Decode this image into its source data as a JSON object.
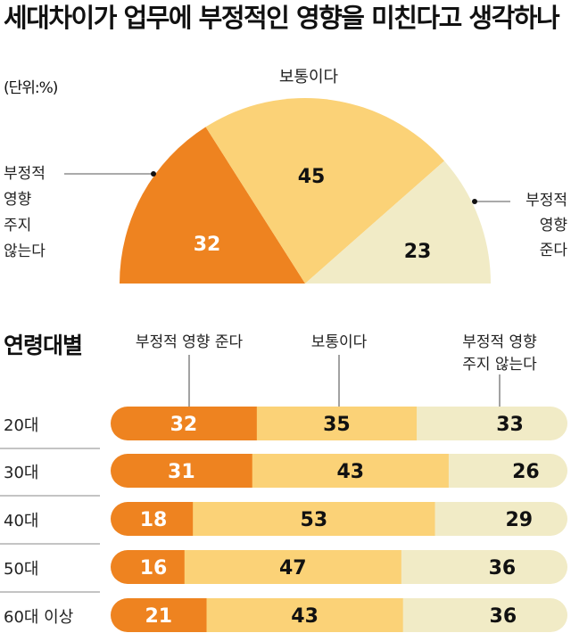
{
  "chart_data": [
    {
      "type": "pie",
      "subtype": "half-donut-semicircle",
      "title": "세대차이가 업무에 부정적인 영향을 미친다고 생각하나",
      "unit": "(단위:%)",
      "slices": [
        {
          "label": "부정적 영향 주지 않는다",
          "label_lines": [
            "부정적",
            "영향",
            "주지",
            "않는다"
          ],
          "value": 32,
          "color": "#ee8320"
        },
        {
          "label": "보통이다",
          "label_lines": [
            "보통이다"
          ],
          "value": 45,
          "color": "#fbd277"
        },
        {
          "label": "부정적 영향 준다",
          "label_lines": [
            "부정적",
            "영향",
            "준다"
          ],
          "value": 23,
          "color": "#f1ebc6"
        }
      ]
    },
    {
      "type": "bar",
      "subtype": "stacked-horizontal-100",
      "title": "연령대별",
      "series_labels": [
        {
          "name": "부정적 영향 준다",
          "lines": [
            "부정적 영향 준다"
          ]
        },
        {
          "name": "보통이다",
          "lines": [
            "보통이다"
          ]
        },
        {
          "name": "부정적 영향 주지 않는다",
          "lines": [
            "부정적 영향",
            "주지 않는다"
          ]
        }
      ],
      "colors": [
        "#ee8320",
        "#fbd277",
        "#f1ebc6"
      ],
      "categories": [
        "20대",
        "30대",
        "40대",
        "50대",
        "60대 이상"
      ],
      "series": [
        {
          "name": "부정적 영향 준다",
          "values": [
            32,
            31,
            18,
            16,
            21
          ]
        },
        {
          "name": "보통이다",
          "values": [
            35,
            43,
            53,
            47,
            43
          ]
        },
        {
          "name": "부정적 영향 주지 않는다",
          "values": [
            33,
            26,
            29,
            36,
            36
          ]
        }
      ]
    }
  ]
}
